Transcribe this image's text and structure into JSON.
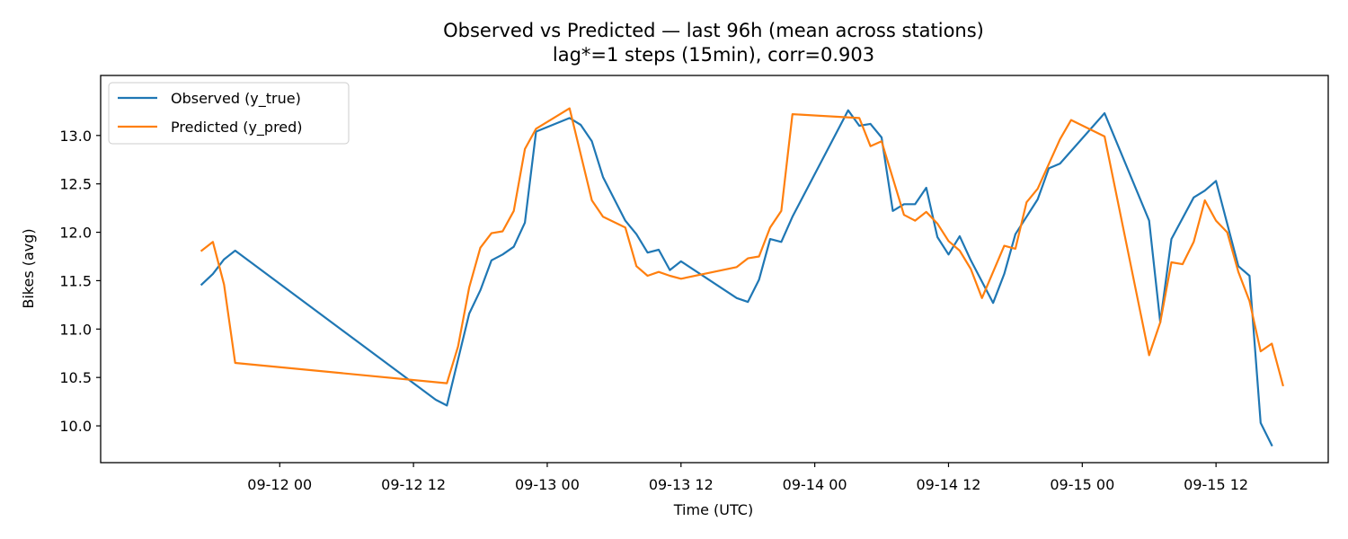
{
  "chart_data": {
    "type": "line",
    "title": "Observed vs Predicted — last 96h (mean across stations)",
    "subtitle": "lag*=1 steps (15min), corr=0.903",
    "xlabel": "Time (UTC)",
    "ylabel": "Bikes (avg)",
    "x_tick_labels": [
      "09-12 00",
      "09-12 12",
      "09-13 00",
      "09-13 12",
      "09-14 00",
      "09-14 12",
      "09-15 00",
      "09-15 12"
    ],
    "y_tick_labels": [
      "10.0",
      "10.5",
      "11.0",
      "11.5",
      "12.0",
      "12.5",
      "13.0"
    ],
    "xlim": [
      "2025-09-11 13:00",
      "2025-09-15 17:00"
    ],
    "ylim": [
      9.8,
      13.4
    ],
    "grid": false,
    "legend_position": "top-left",
    "series": [
      {
        "name": "Observed (y_true)",
        "color": "#1f77b4",
        "points": [
          [
            "2025-09-11 17:00",
            11.46
          ],
          [
            "2025-09-11 18:00",
            11.57
          ],
          [
            "2025-09-11 19:00",
            11.72
          ],
          [
            "2025-09-11 20:00",
            11.81
          ],
          [
            "2025-09-12 14:00",
            10.27
          ],
          [
            "2025-09-12 15:00",
            10.21
          ],
          [
            "2025-09-12 17:00",
            11.16
          ],
          [
            "2025-09-12 18:00",
            11.4
          ],
          [
            "2025-09-12 19:00",
            11.71
          ],
          [
            "2025-09-12 20:00",
            11.77
          ],
          [
            "2025-09-12 21:00",
            11.85
          ],
          [
            "2025-09-12 22:00",
            12.1
          ],
          [
            "2025-09-12 23:00",
            13.04
          ],
          [
            "2025-09-13 02:00",
            13.18
          ],
          [
            "2025-09-13 03:00",
            13.11
          ],
          [
            "2025-09-13 04:00",
            12.94
          ],
          [
            "2025-09-13 05:00",
            12.57
          ],
          [
            "2025-09-13 07:00",
            12.12
          ],
          [
            "2025-09-13 08:00",
            11.98
          ],
          [
            "2025-09-13 09:00",
            11.79
          ],
          [
            "2025-09-13 10:00",
            11.82
          ],
          [
            "2025-09-13 11:00",
            11.61
          ],
          [
            "2025-09-13 12:00",
            11.7
          ],
          [
            "2025-09-13 17:00",
            11.32
          ],
          [
            "2025-09-13 18:00",
            11.28
          ],
          [
            "2025-09-13 19:00",
            11.51
          ],
          [
            "2025-09-13 20:00",
            11.93
          ],
          [
            "2025-09-13 21:00",
            11.9
          ],
          [
            "2025-09-13 22:00",
            12.16
          ],
          [
            "2025-09-14 03:00",
            13.26
          ],
          [
            "2025-09-14 04:00",
            13.1
          ],
          [
            "2025-09-14 05:00",
            13.12
          ],
          [
            "2025-09-14 06:00",
            12.98
          ],
          [
            "2025-09-14 07:00",
            12.22
          ],
          [
            "2025-09-14 08:00",
            12.29
          ],
          [
            "2025-09-14 09:00",
            12.29
          ],
          [
            "2025-09-14 10:00",
            12.46
          ],
          [
            "2025-09-14 11:00",
            11.95
          ],
          [
            "2025-09-14 12:00",
            11.77
          ],
          [
            "2025-09-14 13:00",
            11.96
          ],
          [
            "2025-09-14 14:00",
            11.71
          ],
          [
            "2025-09-14 16:00",
            11.27
          ],
          [
            "2025-09-14 17:00",
            11.57
          ],
          [
            "2025-09-14 18:00",
            11.98
          ],
          [
            "2025-09-14 20:00",
            12.34
          ],
          [
            "2025-09-14 21:00",
            12.66
          ],
          [
            "2025-09-14 22:00",
            12.71
          ],
          [
            "2025-09-15 02:00",
            13.23
          ],
          [
            "2025-09-15 06:00",
            12.12
          ],
          [
            "2025-09-15 07:00",
            11.07
          ],
          [
            "2025-09-15 08:00",
            11.93
          ],
          [
            "2025-09-15 10:00",
            12.36
          ],
          [
            "2025-09-15 11:00",
            12.43
          ],
          [
            "2025-09-15 12:00",
            12.53
          ],
          [
            "2025-09-15 14:00",
            11.65
          ],
          [
            "2025-09-15 15:00",
            11.55
          ],
          [
            "2025-09-15 16:00",
            10.03
          ],
          [
            "2025-09-15 17:00",
            9.8
          ]
        ]
      },
      {
        "name": "Predicted (y_pred)",
        "color": "#ff7f0e",
        "points": [
          [
            "2025-09-11 17:00",
            11.81
          ],
          [
            "2025-09-11 18:00",
            11.9
          ],
          [
            "2025-09-11 19:00",
            11.46
          ],
          [
            "2025-09-11 20:00",
            10.65
          ],
          [
            "2025-09-12 15:00",
            10.44
          ],
          [
            "2025-09-12 16:00",
            10.82
          ],
          [
            "2025-09-12 17:00",
            11.43
          ],
          [
            "2025-09-12 18:00",
            11.84
          ],
          [
            "2025-09-12 19:00",
            11.99
          ],
          [
            "2025-09-12 20:00",
            12.01
          ],
          [
            "2025-09-12 21:00",
            12.22
          ],
          [
            "2025-09-12 22:00",
            12.86
          ],
          [
            "2025-09-12 23:00",
            13.07
          ],
          [
            "2025-09-13 02:00",
            13.28
          ],
          [
            "2025-09-13 04:00",
            12.33
          ],
          [
            "2025-09-13 05:00",
            12.16
          ],
          [
            "2025-09-13 07:00",
            12.05
          ],
          [
            "2025-09-13 08:00",
            11.65
          ],
          [
            "2025-09-13 09:00",
            11.55
          ],
          [
            "2025-09-13 10:00",
            11.59
          ],
          [
            "2025-09-13 11:00",
            11.55
          ],
          [
            "2025-09-13 12:00",
            11.52
          ],
          [
            "2025-09-13 17:00",
            11.64
          ],
          [
            "2025-09-13 18:00",
            11.73
          ],
          [
            "2025-09-13 19:00",
            11.75
          ],
          [
            "2025-09-13 20:00",
            12.05
          ],
          [
            "2025-09-13 21:00",
            12.22
          ],
          [
            "2025-09-13 22:00",
            13.22
          ],
          [
            "2025-09-14 04:00",
            13.18
          ],
          [
            "2025-09-14 05:00",
            12.89
          ],
          [
            "2025-09-14 06:00",
            12.94
          ],
          [
            "2025-09-14 08:00",
            12.18
          ],
          [
            "2025-09-14 09:00",
            12.12
          ],
          [
            "2025-09-14 10:00",
            12.21
          ],
          [
            "2025-09-14 11:00",
            12.09
          ],
          [
            "2025-09-14 12:00",
            11.91
          ],
          [
            "2025-09-14 13:00",
            11.81
          ],
          [
            "2025-09-14 14:00",
            11.62
          ],
          [
            "2025-09-14 15:00",
            11.32
          ],
          [
            "2025-09-14 17:00",
            11.86
          ],
          [
            "2025-09-14 18:00",
            11.83
          ],
          [
            "2025-09-14 19:00",
            12.31
          ],
          [
            "2025-09-14 20:00",
            12.45
          ],
          [
            "2025-09-14 22:00",
            12.96
          ],
          [
            "2025-09-14 23:00",
            13.16
          ],
          [
            "2025-09-15 02:00",
            12.99
          ],
          [
            "2025-09-15 06:00",
            10.73
          ],
          [
            "2025-09-15 07:00",
            11.07
          ],
          [
            "2025-09-15 08:00",
            11.69
          ],
          [
            "2025-09-15 09:00",
            11.67
          ],
          [
            "2025-09-15 10:00",
            11.9
          ],
          [
            "2025-09-15 11:00",
            12.33
          ],
          [
            "2025-09-15 12:00",
            12.12
          ],
          [
            "2025-09-15 13:00",
            12.0
          ],
          [
            "2025-09-15 14:00",
            11.59
          ],
          [
            "2025-09-15 15:00",
            11.29
          ],
          [
            "2025-09-15 16:00",
            10.77
          ],
          [
            "2025-09-15 17:00",
            10.85
          ],
          [
            "2025-09-15 18:00",
            10.42
          ]
        ]
      }
    ]
  }
}
